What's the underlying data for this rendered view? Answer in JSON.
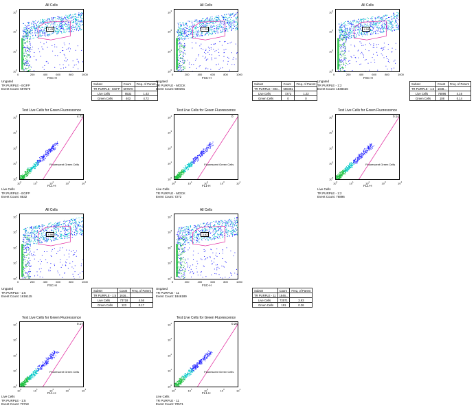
{
  "chart_data": [
    {
      "id": "p1",
      "type": "scatter",
      "title": "All Cells",
      "xlabel": "FSC-H",
      "xticks": [
        "0",
        "200",
        "400",
        "600",
        "800",
        "1000"
      ],
      "yticks": [
        "10^0",
        "10^1",
        "10^2",
        "10^3"
      ],
      "gate_value": "1.43",
      "caption": [
        "Ungated",
        "TR PURPLE - EGFP",
        "Event Count: 597670"
      ],
      "table": {
        "headers": [
          "Subset",
          "Count",
          "Freq. of Parent"
        ],
        "rows": [
          [
            "TR PURPLE - EGFP",
            "597670",
            ""
          ],
          [
            "Live Cells",
            "8532",
            "1.43"
          ],
          [
            "Green Cells",
            "403",
            "4.72"
          ]
        ]
      }
    },
    {
      "id": "p2",
      "type": "scatter",
      "title": "All Cells",
      "xlabel": "FSC-H",
      "xticks": [
        "0",
        "200",
        "400",
        "600",
        "800",
        "1000"
      ],
      "yticks": [
        "10^0",
        "10^1",
        "10^2",
        "10^3"
      ],
      "gate_value": "1.23",
      "caption": [
        "Ungated",
        "TR PURPLE - MOCK",
        "Event Count: 590391"
      ],
      "table": {
        "headers": [
          "Subset",
          "Count",
          "Freq. of Parent"
        ],
        "rows": [
          [
            "TR PURPLE - MO...",
            "590391",
            ""
          ],
          [
            "Live Cells",
            "7272",
            "1.23"
          ],
          [
            "Green Cells",
            "0",
            "0"
          ]
        ]
      }
    },
    {
      "id": "p3",
      "type": "scatter",
      "title": "All Cells",
      "xlabel": "FSC-H",
      "xticks": [
        "0",
        "200",
        "400",
        "600",
        "800",
        "1000"
      ],
      "yticks": [
        "10^0",
        "10^1",
        "10^2",
        "10^3"
      ],
      "gate_value": "4.16",
      "caption": [
        "Ungated",
        "TR PURPLE - 1:2",
        "Event Count: 1848426"
      ],
      "table": {
        "headers": [
          "Subset",
          "Count",
          "Freq. of Parent"
        ],
        "rows": [
          [
            "TR PURPLE - 1:2",
            "1848...",
            ""
          ],
          [
            "Live Cells",
            "76896",
            "4.16"
          ],
          [
            "Green Cells",
            "108",
            "0.14"
          ]
        ]
      }
    },
    {
      "id": "p4",
      "type": "scatter",
      "title": "Test Live Cells for Green Fluorescence",
      "xlabel": "FL1-H",
      "xticks": [
        "10^0",
        "10^1",
        "10^2",
        "10^3",
        "10^4"
      ],
      "yticks": [
        "10^0",
        "10^1",
        "10^2",
        "10^3",
        "10^4"
      ],
      "corner_value": "4.72",
      "gate_label": "Fluorescent Green Cells",
      "caption": [
        "Live Cells",
        "TR PURPLE - EGFP",
        "Event Count: 8532"
      ]
    },
    {
      "id": "p5",
      "type": "scatter",
      "title": "Test Live Cells for Green Fluorescence",
      "xlabel": "FL1-H",
      "xticks": [
        "10^0",
        "10^1",
        "10^2",
        "10^3",
        "10^4"
      ],
      "yticks": [
        "10^0",
        "10^1",
        "10^2",
        "10^3",
        "10^4"
      ],
      "corner_value": "0",
      "gate_label": "Fluorescent Green Cells",
      "caption": [
        "Live Cells",
        "TR PURPLE - MOCK",
        "Event Count: 7272"
      ]
    },
    {
      "id": "p6",
      "type": "scatter",
      "title": "Test Live Cells for Green Fluorescence",
      "xlabel": "FL1-H",
      "xticks": [
        "10^0",
        "10^1",
        "10^2",
        "10^3",
        "10^4"
      ],
      "yticks": [
        "10^0",
        "10^1",
        "10^2",
        "10^3",
        "10^4"
      ],
      "corner_value": "0.14",
      "gate_label": "Fluorescent Green Cells",
      "caption": [
        "Live Cells",
        "TR PURPLE - 1:2",
        "Event Count: 76896"
      ]
    },
    {
      "id": "p7",
      "type": "scatter",
      "title": "All Cells",
      "xlabel": "FSC-H",
      "xticks": [
        "0",
        "200",
        "400",
        "600",
        "800",
        "1000"
      ],
      "yticks": [
        "10^0",
        "10^1",
        "10^2",
        "10^3",
        "10^4"
      ],
      "gate_value": "4.56",
      "caption": [
        "Ungated",
        "TR PURPLE - 1:5",
        "Event Count: 1616115"
      ],
      "table": {
        "headers": [
          "Subset",
          "Count",
          "Freq. of Parent"
        ],
        "rows": [
          [
            "TR PURPLE - 1:5",
            "1616...",
            ""
          ],
          [
            "Live Cells",
            "73718",
            "4.56"
          ],
          [
            "Green Cells",
            "123",
            "0.17"
          ]
        ]
      }
    },
    {
      "id": "p8",
      "type": "scatter",
      "title": "All Cells",
      "xlabel": "FSC-H",
      "xticks": [
        "0",
        "200",
        "400",
        "600",
        "800",
        "1000"
      ],
      "yticks": [
        "10^0",
        "10^1",
        "10^2",
        "10^3",
        "10^4"
      ],
      "gate_value": "3.93",
      "caption": [
        "Ungated",
        "TR PURPLE - 11",
        "Event Count: 1846189"
      ],
      "table": {
        "headers": [
          "Subset",
          "Count",
          "Freq. of Parent"
        ],
        "rows": [
          [
            "TR PURPLE - 11",
            "1846...",
            ""
          ],
          [
            "Live Cells",
            "72571",
            "3.93"
          ],
          [
            "Green Cells",
            "191",
            "0.26"
          ]
        ]
      }
    },
    {
      "id": "p9",
      "type": "scatter",
      "title": "Test Live Cells for Green Fluorescence",
      "xlabel": "FL1-H",
      "xticks": [
        "10^0",
        "10^1",
        "10^2",
        "10^3",
        "10^4"
      ],
      "yticks": [
        "10^0",
        "10^1",
        "10^2",
        "10^3",
        "10^4"
      ],
      "corner_value": "0.17",
      "gate_label": "Fluorescent Green Cells",
      "caption": [
        "Live Cells",
        "TR PURPLE - 1:5",
        "Event Count: 73718"
      ]
    },
    {
      "id": "p10",
      "type": "scatter",
      "title": "Test Live Cells for Green Fluorescence",
      "xlabel": "FL1-H",
      "xticks": [
        "10^0",
        "10^1",
        "10^2",
        "10^3",
        "10^4"
      ],
      "yticks": [
        "10^0",
        "10^1",
        "10^2",
        "10^3",
        "10^4"
      ],
      "corner_value": "0.26",
      "gate_label": "Fluorescent Green Cells",
      "caption": [
        "Live Cells",
        "TR PURPLE - 11",
        "Event Count: 72571"
      ]
    }
  ],
  "colors": {
    "gate_line": "#e0209a",
    "density_low": "#2020ff",
    "density_high": "#00c8c8",
    "density_core": "#20c040",
    "axis": "#000000"
  }
}
